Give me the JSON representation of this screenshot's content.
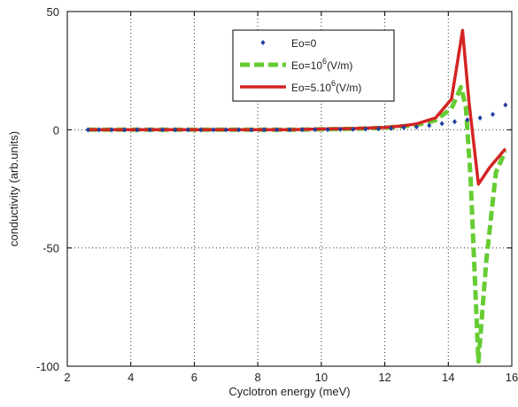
{
  "chart_data": {
    "type": "line",
    "title": "",
    "xlabel": "Cyclotron energy (meV)",
    "ylabel": "conductivity (arb.units)",
    "xlim": [
      2,
      16
    ],
    "ylim": [
      -100,
      50
    ],
    "xticks": [
      2,
      4,
      6,
      8,
      10,
      12,
      14,
      16
    ],
    "yticks": [
      -100,
      -50,
      0,
      50
    ],
    "grid": "dotted",
    "legend_position": "top-right",
    "series": [
      {
        "name": "Eo=0",
        "legend_main": "Eo=0",
        "legend_sup": "",
        "legend_tail": "",
        "style": "markers",
        "color": "#1f3fa0",
        "points": [
          [
            2.65,
            0
          ],
          [
            3.0,
            0
          ],
          [
            3.4,
            0
          ],
          [
            3.8,
            0
          ],
          [
            4.2,
            0
          ],
          [
            4.6,
            0
          ],
          [
            5.0,
            0
          ],
          [
            5.4,
            0
          ],
          [
            5.8,
            0
          ],
          [
            6.2,
            0
          ],
          [
            6.6,
            0
          ],
          [
            7.0,
            0
          ],
          [
            7.4,
            0
          ],
          [
            7.8,
            0
          ],
          [
            8.2,
            0
          ],
          [
            8.6,
            0
          ],
          [
            9.0,
            0.05
          ],
          [
            9.4,
            0.05
          ],
          [
            9.8,
            0.1
          ],
          [
            10.2,
            0.1
          ],
          [
            10.6,
            0.15
          ],
          [
            11.0,
            0.2
          ],
          [
            11.4,
            0.3
          ],
          [
            11.8,
            0.4
          ],
          [
            12.2,
            0.6
          ],
          [
            12.6,
            0.9
          ],
          [
            13.0,
            1.2
          ],
          [
            13.4,
            1.8
          ],
          [
            13.8,
            2.6
          ],
          [
            14.2,
            3.4
          ],
          [
            14.6,
            4.2
          ],
          [
            15.0,
            5.0
          ],
          [
            15.4,
            6.5
          ],
          [
            15.8,
            10.5
          ]
        ]
      },
      {
        "name": "Eo=10^6(V/m)",
        "legend_main": "Eo=10",
        "legend_sup": "6",
        "legend_tail": "(V/m)",
        "style": "dashed",
        "color": "#66cc33",
        "points": [
          [
            2.65,
            0
          ],
          [
            9.0,
            0
          ],
          [
            10.0,
            0.2
          ],
          [
            11.0,
            0.4
          ],
          [
            12.0,
            0.8
          ],
          [
            12.6,
            1.5
          ],
          [
            13.0,
            2.0
          ],
          [
            13.6,
            4.0
          ],
          [
            14.1,
            9.0
          ],
          [
            14.4,
            18.0
          ],
          [
            14.55,
            10.0
          ],
          [
            14.7,
            -20.0
          ],
          [
            14.95,
            -98.0
          ],
          [
            15.2,
            -55.0
          ],
          [
            15.5,
            -18.0
          ],
          [
            15.8,
            -9.0
          ]
        ]
      },
      {
        "name": "Eo=5.10^6(V/m)",
        "legend_main": "Eo=5.10",
        "legend_sup": "6",
        "legend_tail": "(V/m)",
        "style": "solid",
        "color": "#d42424",
        "points": [
          [
            2.65,
            0
          ],
          [
            9.0,
            0
          ],
          [
            10.0,
            0.3
          ],
          [
            11.0,
            0.5
          ],
          [
            12.0,
            1.0
          ],
          [
            12.6,
            1.7
          ],
          [
            13.0,
            2.5
          ],
          [
            13.6,
            5.0
          ],
          [
            14.1,
            13.0
          ],
          [
            14.45,
            42.0
          ],
          [
            14.65,
            12.0
          ],
          [
            14.95,
            -23.0
          ],
          [
            15.3,
            -16.0
          ],
          [
            15.8,
            -8.0
          ]
        ]
      }
    ]
  }
}
